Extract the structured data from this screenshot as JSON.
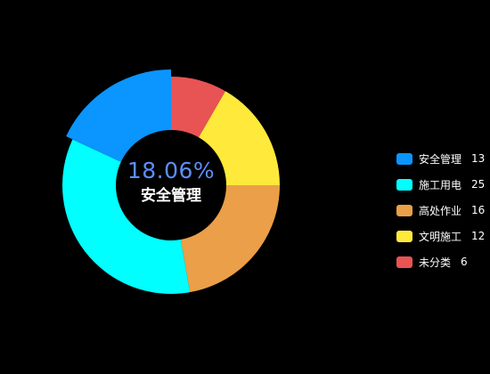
{
  "chart_data": {
    "type": "pie",
    "variant": "donut",
    "title": "",
    "categories": [
      "安全管理",
      "施工用电",
      "高处作业",
      "文明施工",
      "未分类"
    ],
    "values": [
      13,
      25,
      16,
      12,
      6
    ],
    "colors": [
      "#0a95ff",
      "#00ffff",
      "#ea9f48",
      "#ffe93a",
      "#e85353"
    ],
    "highlighted_index": 0,
    "center": {
      "value": "18.06%",
      "label": "安全管理"
    },
    "legend_position": "right"
  }
}
